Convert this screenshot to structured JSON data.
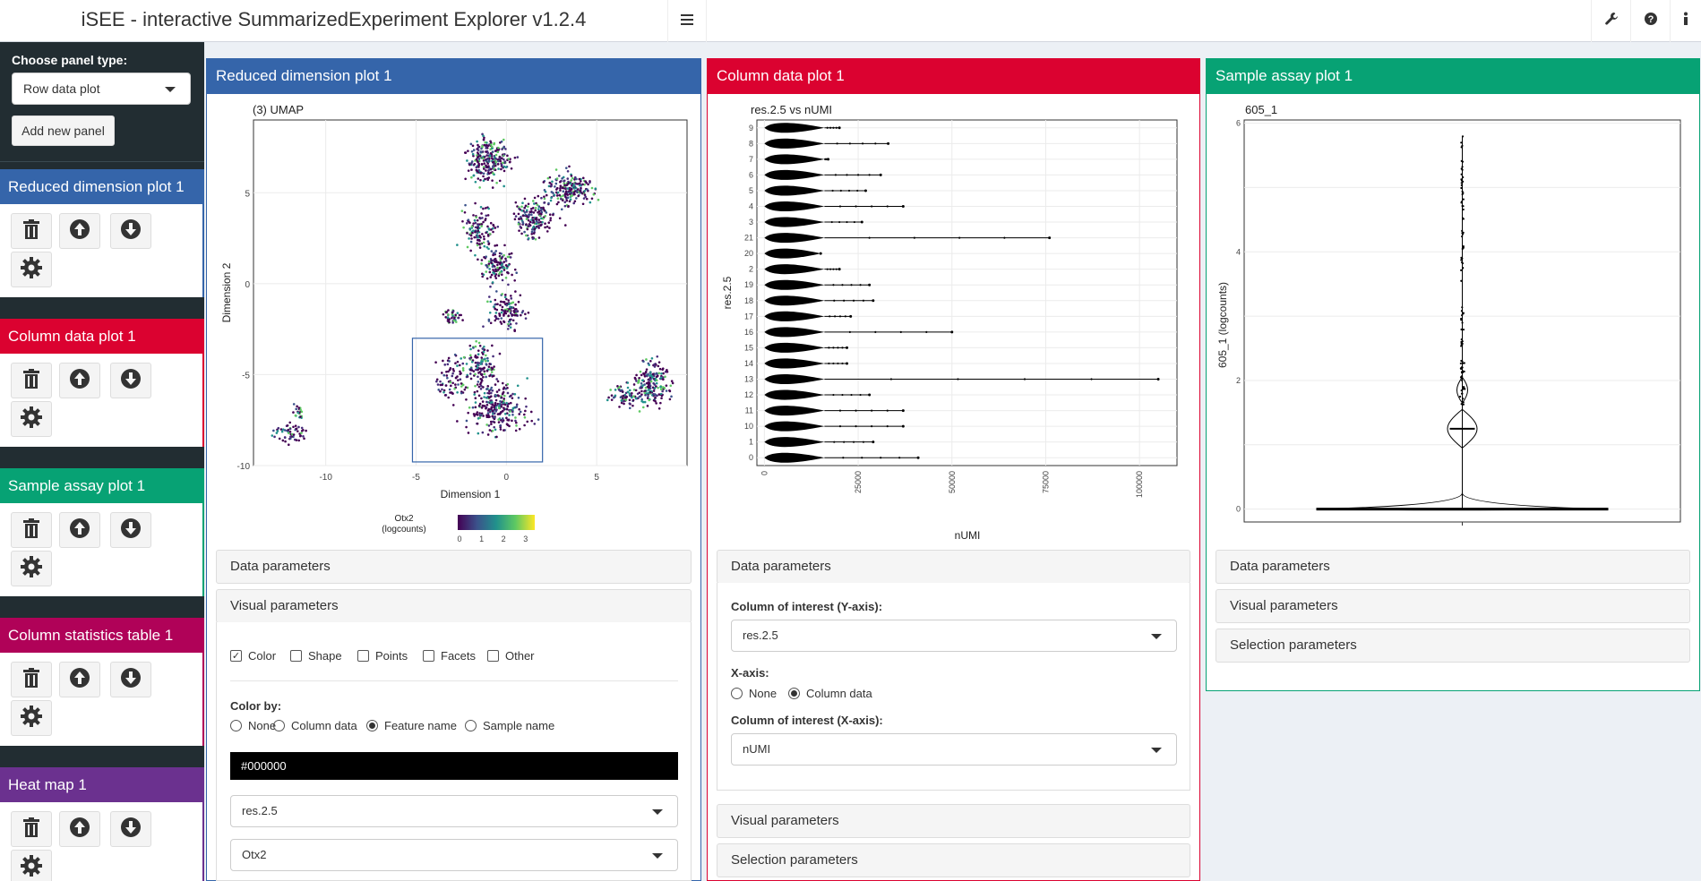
{
  "app": {
    "title": "iSEE - interactive SummarizedExperiment Explorer v1.2.4"
  },
  "topbar": {
    "menu_icon": "hamburger-icon",
    "icons": [
      "wrench-icon",
      "question-circle-icon",
      "info-icon"
    ]
  },
  "sidebar": {
    "choose_label": "Choose panel type:",
    "panel_type": "Row data plot",
    "add_button": "Add new panel",
    "panels": [
      {
        "title": "Reduced dimension plot 1",
        "color": "#3565AA"
      },
      {
        "title": "Column data plot 1",
        "color": "#DB0230"
      },
      {
        "title": "Sample assay plot 1",
        "color": "#07A274"
      },
      {
        "title": "Column statistics table 1",
        "color": "#B00258"
      },
      {
        "title": "Heat map 1",
        "color": "#6B318F"
      }
    ]
  },
  "panels": {
    "redim": {
      "title": "Reduced dimension plot 1",
      "color": "#3565AA",
      "plot": {
        "title": "(3) UMAP",
        "xlabel": "Dimension 1",
        "ylabel": "Dimension 2",
        "xticks": [
          "-10",
          "-5",
          "0",
          "5"
        ],
        "yticks": [
          "5",
          "0",
          "-5",
          "-10"
        ],
        "legend_title_1": "Otx2",
        "legend_title_2": "(logcounts)",
        "legend_ticks": [
          "0",
          "1",
          "2",
          "3"
        ]
      },
      "data_params": "Data parameters",
      "visual_params": "Visual parameters",
      "checkboxes": [
        {
          "label": "Color",
          "checked": true
        },
        {
          "label": "Shape",
          "checked": false
        },
        {
          "label": "Points",
          "checked": false
        },
        {
          "label": "Facets",
          "checked": false
        },
        {
          "label": "Other",
          "checked": false
        }
      ],
      "color_by_label": "Color by:",
      "color_by_options": [
        {
          "label": "None",
          "selected": false
        },
        {
          "label": "Column data",
          "selected": false
        },
        {
          "label": "Feature name",
          "selected": true
        },
        {
          "label": "Sample name",
          "selected": false
        }
      ],
      "color_value": "#000000",
      "select_1": "res.2.5",
      "select_2": "Otx2"
    },
    "coldata": {
      "title": "Column data plot 1",
      "color": "#DB0230",
      "plot": {
        "title": "res.2.5 vs nUMI",
        "xlabel": "nUMI",
        "ylabel": "res.2.5",
        "xticks": [
          "0",
          "25000",
          "50000",
          "75000",
          "100000"
        ]
      },
      "data_params": "Data parameters",
      "y_label": "Column of interest (Y-axis):",
      "y_value": "res.2.5",
      "x_axis_label": "X-axis:",
      "x_axis_options": [
        {
          "label": "None",
          "selected": false
        },
        {
          "label": "Column data",
          "selected": true
        }
      ],
      "x_col_label": "Column of interest (X-axis):",
      "x_value": "nUMI",
      "visual_params": "Visual parameters",
      "selection_params": "Selection parameters"
    },
    "sample": {
      "title": "Sample assay plot 1",
      "color": "#07A274",
      "plot": {
        "title": "605_1",
        "ylabel": "605_1 (logcounts)",
        "yticks": [
          "6",
          "4",
          "2",
          "0"
        ]
      },
      "data_params": "Data parameters",
      "visual_params": "Visual parameters",
      "selection_params": "Selection parameters"
    }
  },
  "chart_data": [
    {
      "type": "scatter",
      "title": "(3) UMAP",
      "xlabel": "Dimension 1",
      "ylabel": "Dimension 2",
      "xlim": [
        -14,
        10
      ],
      "ylim": [
        -10,
        9
      ],
      "color_by": "Otx2 (logcounts)",
      "color_range": [
        0,
        3.5
      ],
      "selection_box": {
        "x": [
          -5.2,
          2
        ],
        "y": [
          -9.8,
          -3
        ]
      }
    },
    {
      "type": "violin",
      "title": "res.2.5 vs nUMI",
      "xlabel": "nUMI",
      "ylabel": "res.2.5",
      "categories": [
        "9",
        "8",
        "7",
        "6",
        "5",
        "4",
        "3",
        "21",
        "20",
        "2",
        "19",
        "18",
        "17",
        "16",
        "15",
        "14",
        "13",
        "12",
        "11",
        "10",
        "1",
        "0"
      ],
      "max_values": [
        20000,
        33000,
        17000,
        31000,
        27000,
        37000,
        26000,
        76000,
        15000,
        20000,
        28000,
        29000,
        23000,
        50000,
        22000,
        22000,
        105000,
        28000,
        37000,
        37000,
        29000,
        41000
      ],
      "xlim": [
        -2000,
        110000
      ]
    },
    {
      "type": "violin",
      "title": "605_1",
      "ylabel": "605_1 (logcounts)",
      "ylim": [
        -0.2,
        6.05
      ],
      "max_value": 5.8,
      "modes": [
        0,
        1.25,
        1.85
      ]
    }
  ]
}
